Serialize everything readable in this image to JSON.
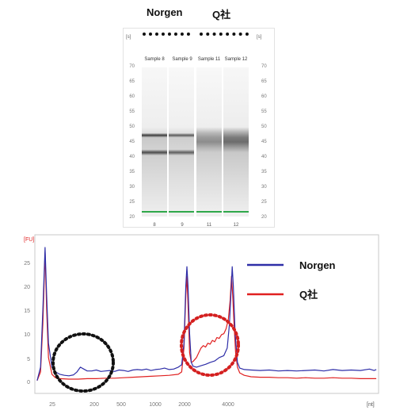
{
  "gel": {
    "header_left": "Norgen",
    "header_right": "Q社",
    "unit_left": "[s]",
    "unit_right": "[s]",
    "scale_ticks": [
      "70",
      "65",
      "60",
      "55",
      "50",
      "45",
      "40",
      "35",
      "30",
      "25",
      "20"
    ],
    "lanes": [
      {
        "name": "Sample 8",
        "number": "8"
      },
      {
        "name": "Sample 9",
        "number": "9"
      },
      {
        "name": "Sample 11",
        "number": "11"
      },
      {
        "name": "Sample 12",
        "number": "12"
      }
    ]
  },
  "chart_data": {
    "type": "line",
    "y_unit_label": "[FU]",
    "x_unit_label": "[nt]",
    "y_ticks": [
      "0",
      "5",
      "10",
      "15",
      "20",
      "25"
    ],
    "x_ticks": [
      "25",
      "200",
      "500",
      "1000",
      "2000",
      "4000"
    ],
    "ylim": [
      0,
      29
    ],
    "legend": "right",
    "series": [
      {
        "name": "Norgen",
        "color": "#2e2ea8",
        "points": [
          [
            22,
            0.2
          ],
          [
            23.5,
            3
          ],
          [
            24.5,
            15
          ],
          [
            25.5,
            28
          ],
          [
            26.2,
            18
          ],
          [
            27,
            8
          ],
          [
            28.5,
            3
          ],
          [
            30,
            2
          ],
          [
            32,
            1.5
          ],
          [
            34,
            1.3
          ],
          [
            36,
            1.2
          ],
          [
            38,
            1.4
          ],
          [
            39.5,
            2
          ],
          [
            41,
            3
          ],
          [
            42.5,
            2.6
          ],
          [
            44,
            2.2
          ],
          [
            46,
            2.2
          ],
          [
            48,
            2.4
          ],
          [
            50,
            2.1
          ],
          [
            52,
            2.2
          ],
          [
            54,
            2.3
          ],
          [
            56,
            2.1
          ],
          [
            58,
            2.4
          ],
          [
            60,
            2.3
          ],
          [
            62,
            2.1
          ],
          [
            64,
            2.4
          ],
          [
            66,
            2.5
          ],
          [
            68,
            2.4
          ],
          [
            70,
            2.6
          ],
          [
            72,
            2.3
          ],
          [
            74,
            2.5
          ],
          [
            76,
            2.6
          ],
          [
            78,
            2.8
          ],
          [
            80,
            2.5
          ],
          [
            82,
            2.6
          ],
          [
            84,
            3
          ],
          [
            85.5,
            3.5
          ],
          [
            86.5,
            8
          ],
          [
            87.3,
            20
          ],
          [
            87.8,
            24
          ],
          [
            88.3,
            20
          ],
          [
            89,
            10
          ],
          [
            89.7,
            4
          ],
          [
            90.5,
            3.2
          ],
          [
            92,
            3
          ],
          [
            94,
            3.3
          ],
          [
            96,
            3.6
          ],
          [
            98,
            4
          ],
          [
            100,
            4.3
          ],
          [
            102,
            5
          ],
          [
            104,
            5.4
          ],
          [
            105.5,
            7
          ],
          [
            106.5,
            12
          ],
          [
            107.2,
            19
          ],
          [
            107.7,
            24
          ],
          [
            108.2,
            20
          ],
          [
            109,
            10
          ],
          [
            110,
            4
          ],
          [
            111,
            2.8
          ],
          [
            113,
            2.5
          ],
          [
            116,
            2.4
          ],
          [
            120,
            2.3
          ],
          [
            124,
            2.4
          ],
          [
            128,
            2.2
          ],
          [
            132,
            2.3
          ],
          [
            136,
            2.2
          ],
          [
            140,
            2.3
          ],
          [
            144,
            2.4
          ],
          [
            148,
            2.2
          ],
          [
            152,
            2.5
          ],
          [
            156,
            2.3
          ],
          [
            160,
            2.4
          ],
          [
            164,
            2.3
          ],
          [
            168,
            2.6
          ],
          [
            170,
            2.3
          ],
          [
            171,
            2.5
          ]
        ]
      },
      {
        "name": "Q社",
        "color": "#e02020",
        "points": [
          [
            22,
            0.2
          ],
          [
            23.5,
            2
          ],
          [
            24.5,
            12
          ],
          [
            25.5,
            27
          ],
          [
            26.2,
            15
          ],
          [
            27,
            5
          ],
          [
            28.5,
            1.5
          ],
          [
            30,
            0.8
          ],
          [
            32,
            0.6
          ],
          [
            36,
            0.5
          ],
          [
            40,
            0.5
          ],
          [
            44,
            0.6
          ],
          [
            48,
            0.6
          ],
          [
            52,
            0.7
          ],
          [
            56,
            0.7
          ],
          [
            60,
            0.8
          ],
          [
            64,
            0.9
          ],
          [
            68,
            1
          ],
          [
            72,
            1.1
          ],
          [
            76,
            1.2
          ],
          [
            80,
            1.3
          ],
          [
            84,
            1.5
          ],
          [
            85.5,
            2
          ],
          [
            86.5,
            7
          ],
          [
            87.3,
            18
          ],
          [
            87.8,
            22
          ],
          [
            88.3,
            16
          ],
          [
            89,
            6
          ],
          [
            89.7,
            4
          ],
          [
            90.5,
            4.2
          ],
          [
            92,
            5
          ],
          [
            93,
            6
          ],
          [
            94,
            7
          ],
          [
            95,
            7.5
          ],
          [
            96,
            7.2
          ],
          [
            97,
            8
          ],
          [
            98,
            7.8
          ],
          [
            99,
            8.6
          ],
          [
            100,
            8.3
          ],
          [
            101,
            9.2
          ],
          [
            102,
            9
          ],
          [
            103,
            9.8
          ],
          [
            104,
            10
          ],
          [
            105,
            11
          ],
          [
            106,
            13
          ],
          [
            106.8,
            17
          ],
          [
            107.4,
            22
          ],
          [
            107.9,
            18
          ],
          [
            108.5,
            12
          ],
          [
            109.2,
            6
          ],
          [
            110,
            3
          ],
          [
            111,
            1.8
          ],
          [
            113,
            1.3
          ],
          [
            116,
            1
          ],
          [
            120,
            0.9
          ],
          [
            124,
            0.9
          ],
          [
            128,
            0.8
          ],
          [
            132,
            0.8
          ],
          [
            136,
            0.7
          ],
          [
            140,
            0.8
          ],
          [
            144,
            0.7
          ],
          [
            148,
            0.7
          ],
          [
            152,
            0.8
          ],
          [
            156,
            0.7
          ],
          [
            160,
            0.7
          ],
          [
            164,
            0.6
          ],
          [
            168,
            0.6
          ],
          [
            171,
            0.6
          ]
        ]
      }
    ]
  }
}
